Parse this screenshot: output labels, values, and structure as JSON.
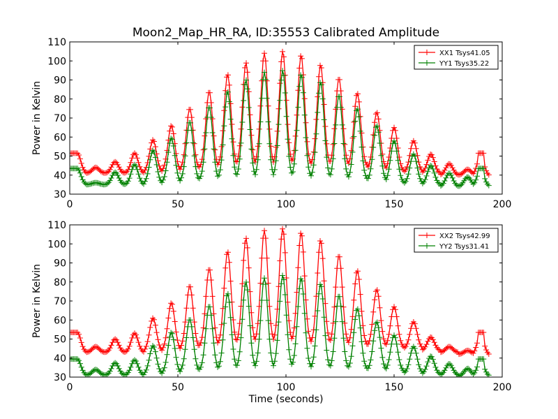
{
  "title": "Moon2_Map_HR_RA, ID:35553 Calibrated Amplitude",
  "chart_data": [
    {
      "type": "line",
      "title": "Moon2_Map_HR_RA, ID:35553 Calibrated Amplitude",
      "xlabel": "",
      "ylabel": "Power in Kelvin",
      "xlim": [
        0,
        200
      ],
      "ylim": [
        30,
        110
      ],
      "xticks": [
        0,
        50,
        100,
        150,
        200
      ],
      "yticks": [
        30,
        40,
        50,
        60,
        70,
        80,
        90,
        100,
        110
      ],
      "legend_position": "top-right",
      "grid": false,
      "pattern": {
        "peak_times": [
          3.5,
          12,
          21,
          30,
          38.5,
          47,
          55.5,
          64.5,
          73,
          81.5,
          90,
          98.5,
          107,
          116,
          124.5,
          133,
          142,
          150,
          159,
          167,
          175.5,
          184,
          190
        ],
        "time_range": [
          0,
          194
        ],
        "sample_step": 0.6
      },
      "series": [
        {
          "name": "XX1 Tsys41.05",
          "color": "#ff0000",
          "edge_level": 51.5,
          "base": [
            41,
            41,
            41,
            41,
            41.5,
            42,
            43,
            43.5,
            44.5,
            45,
            45,
            45.5,
            45,
            45,
            45,
            44.5,
            43,
            42,
            41.5,
            41,
            40,
            40,
            39.5
          ],
          "peaks": [
            51.5,
            44,
            47,
            51.5,
            58.5,
            66,
            75,
            84,
            93,
            99,
            104,
            105,
            103,
            98,
            91,
            83,
            73,
            65,
            58,
            51,
            46,
            43,
            50
          ]
        },
        {
          "name": "YY1 Tsys35.22",
          "color": "#008000",
          "edge_level": 43.5,
          "base": [
            35,
            35,
            35,
            35,
            35.5,
            36,
            37,
            37.5,
            38,
            38.5,
            38.5,
            39,
            38.5,
            38.5,
            38,
            37.5,
            37,
            36,
            35.5,
            35,
            34,
            34,
            34
          ],
          "peaks": [
            43.5,
            36,
            41.5,
            45.5,
            53,
            59.5,
            68,
            76,
            84,
            90,
            94,
            95,
            93,
            89,
            82,
            75,
            66,
            58,
            51,
            45,
            41,
            39,
            43
          ]
        }
      ]
    },
    {
      "type": "line",
      "title": "",
      "xlabel": "Time (seconds)",
      "ylabel": "Power in Kelvin",
      "xlim": [
        0,
        200
      ],
      "ylim": [
        30,
        110
      ],
      "xticks": [
        0,
        50,
        100,
        150,
        200
      ],
      "yticks": [
        30,
        40,
        50,
        60,
        70,
        80,
        90,
        100,
        110
      ],
      "legend_position": "top-right",
      "grid": false,
      "pattern": {
        "peak_times": [
          3.5,
          12,
          21,
          30,
          38.5,
          47,
          55.5,
          64.5,
          73,
          81.5,
          90,
          98.5,
          107,
          116,
          124.5,
          133,
          142,
          150,
          159,
          167,
          175.5,
          184,
          190
        ],
        "time_range": [
          0,
          194
        ],
        "sample_step": 0.6
      },
      "series": [
        {
          "name": "XX2 Tsys42.99",
          "color": "#ff0000",
          "edge_level": 53.5,
          "base": [
            43,
            43,
            43,
            43,
            43.5,
            44,
            45,
            46,
            47,
            47.5,
            48,
            48,
            48,
            47.5,
            47,
            46.5,
            46,
            45.5,
            45,
            44,
            43,
            42,
            41.5
          ],
          "peaks": [
            53.5,
            46,
            50,
            53,
            61,
            69,
            78,
            87,
            96,
            103,
            107,
            108,
            106,
            102,
            94,
            86,
            76,
            67,
            59,
            51,
            46,
            44,
            52
          ]
        },
        {
          "name": "YY2 Tsys31.41",
          "color": "#008000",
          "edge_level": 39.5,
          "base": [
            31,
            31,
            31,
            31,
            31.5,
            32,
            33,
            33.5,
            34,
            34.5,
            34.5,
            35,
            35,
            34.5,
            34,
            34,
            33.5,
            33,
            32,
            31.5,
            31,
            30.5,
            30.5
          ],
          "peaks": [
            39.5,
            34,
            37.5,
            39,
            46.5,
            53.5,
            60.5,
            67.5,
            74,
            80,
            82,
            83.5,
            82,
            79,
            73,
            66,
            59,
            52,
            46,
            41,
            37,
            34.5,
            38.5
          ]
        }
      ]
    }
  ]
}
